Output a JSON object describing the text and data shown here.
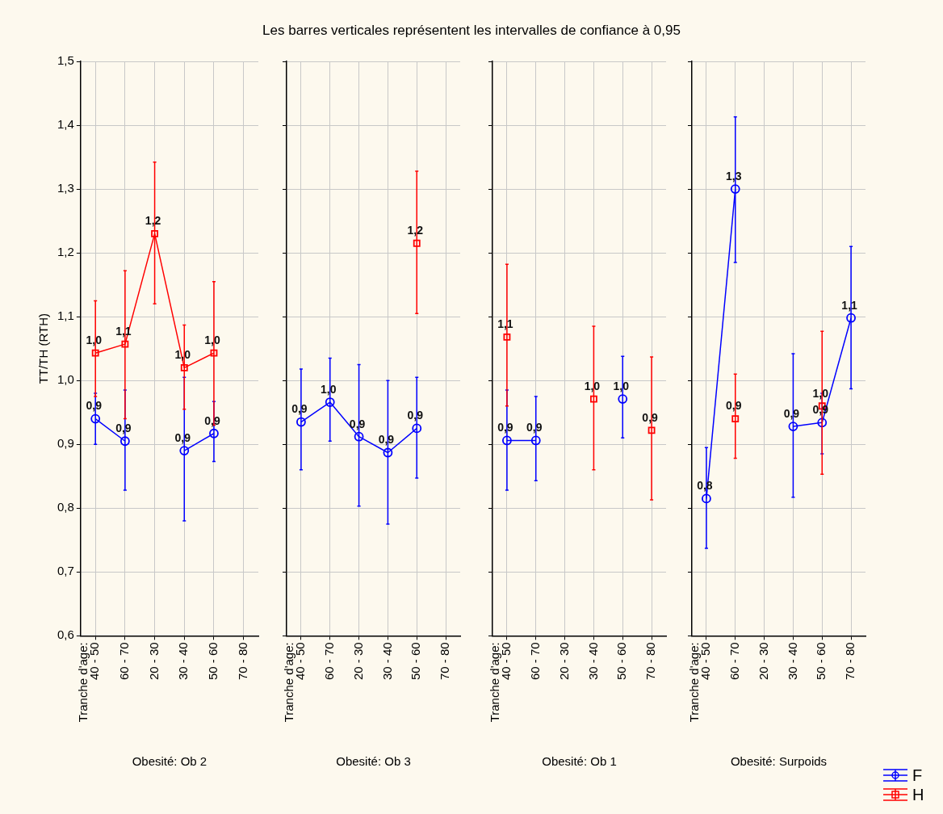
{
  "chart_data": [
    {
      "type": "line",
      "title": "Les barres verticales représentent les intervalles de confiance à 0,95",
      "ylabel": "TT/TH (RTH)",
      "xlabel": "Obesité: Ob 2",
      "annotations": [
        "Tranche d'age:"
      ],
      "categories": [
        "40 - 50",
        "60 - 70",
        "20 - 30",
        "30 - 40",
        "50 - 60",
        "70 - 80"
      ],
      "ylim": [
        0.6,
        1.5
      ],
      "yticks": [
        {
          "value": 0.6,
          "label": "0,6"
        },
        {
          "value": 0.7,
          "label": "0,7"
        },
        {
          "value": 0.8,
          "label": "0,8"
        },
        {
          "value": 0.9,
          "label": "0,9"
        },
        {
          "value": 1.0,
          "label": "1,0"
        },
        {
          "value": 1.1,
          "label": "1,1"
        },
        {
          "value": 1.2,
          "label": "1,2"
        },
        {
          "value": 1.3,
          "label": "1,3"
        },
        {
          "value": 1.4,
          "label": "1,4"
        },
        {
          "value": 1.5,
          "label": "1,5"
        }
      ],
      "grid": true,
      "line_style": "solid",
      "series": [
        {
          "color": "#0000ff",
          "marker": "circle",
          "values": [
            0.94,
            0.905,
            null,
            0.89,
            0.917,
            null
          ],
          "errors": [
            [
              0.9,
              0.98
            ],
            [
              0.828,
              0.985
            ],
            null,
            [
              0.78,
              1.005
            ],
            [
              0.873,
              0.967
            ],
            null
          ],
          "value_labels": [
            "0,9",
            "0,9",
            null,
            "0,9",
            "0,9",
            null
          ]
        },
        {
          "color": "#ff0000",
          "marker": "square",
          "values": [
            1.043,
            1.057,
            1.23,
            1.02,
            1.043,
            null
          ],
          "errors": [
            [
              0.975,
              1.125
            ],
            [
              0.94,
              1.172
            ],
            [
              1.12,
              1.342
            ],
            [
              0.955,
              1.087
            ],
            [
              0.93,
              1.155
            ],
            null
          ],
          "value_labels": [
            "1,0",
            "1,1",
            "1,2",
            "1,0",
            "1,0",
            null
          ]
        }
      ]
    },
    {
      "type": "line",
      "xlabel": "Obesité: Ob 3",
      "annotations": [
        "Tranche d'age:"
      ],
      "categories": [
        "40 - 50",
        "60 - 70",
        "20 - 30",
        "30 - 40",
        "50 - 60",
        "70 - 80"
      ],
      "ylim": [
        0.6,
        1.5
      ],
      "yticks": [
        {
          "value": 0.6,
          "label": null
        },
        {
          "value": 0.7,
          "label": null
        },
        {
          "value": 0.8,
          "label": null
        },
        {
          "value": 0.9,
          "label": null
        },
        {
          "value": 1.0,
          "label": null
        },
        {
          "value": 1.1,
          "label": null
        },
        {
          "value": 1.2,
          "label": null
        },
        {
          "value": 1.3,
          "label": null
        },
        {
          "value": 1.4,
          "label": null
        },
        {
          "value": 1.5,
          "label": null
        }
      ],
      "tick_labels": "x",
      "grid": true,
      "line_style": "solid",
      "series": [
        {
          "color": "#0000ff",
          "marker": "circle",
          "values": [
            0.935,
            0.966,
            0.912,
            0.887,
            0.925,
            null
          ],
          "errors": [
            [
              0.86,
              1.018
            ],
            [
              0.905,
              1.035
            ],
            [
              0.803,
              1.025
            ],
            [
              0.775,
              1.0
            ],
            [
              0.847,
              1.005
            ],
            null
          ],
          "value_labels": [
            "0,9",
            "1,0",
            "0,9",
            "0,9",
            "0,9",
            null
          ]
        },
        {
          "color": "#ff0000",
          "marker": "square",
          "values": [
            null,
            null,
            null,
            null,
            1.215,
            null
          ],
          "errors": [
            null,
            null,
            null,
            null,
            [
              1.105,
              1.328
            ],
            null
          ],
          "value_labels": [
            null,
            null,
            null,
            null,
            "1,2",
            null
          ]
        }
      ]
    },
    {
      "type": "line",
      "xlabel": "Obesité: Ob 1",
      "annotations": [
        "Tranche d'age:"
      ],
      "categories": [
        "40 - 50",
        "60 - 70",
        "20 - 30",
        "30 - 40",
        "50 - 60",
        "70 - 80"
      ],
      "ylim": [
        0.6,
        1.5
      ],
      "yticks": [
        {
          "value": 0.6,
          "label": null
        },
        {
          "value": 0.7,
          "label": null
        },
        {
          "value": 0.8,
          "label": null
        },
        {
          "value": 0.9,
          "label": null
        },
        {
          "value": 1.0,
          "label": null
        },
        {
          "value": 1.1,
          "label": null
        },
        {
          "value": 1.2,
          "label": null
        },
        {
          "value": 1.3,
          "label": null
        },
        {
          "value": 1.4,
          "label": null
        },
        {
          "value": 1.5,
          "label": null
        }
      ],
      "tick_labels": "x",
      "grid": true,
      "line_style": "solid",
      "series": [
        {
          "color": "#0000ff",
          "marker": "circle",
          "values": [
            0.906,
            0.906,
            null,
            null,
            0.971,
            null
          ],
          "errors": [
            [
              0.828,
              0.985
            ],
            [
              0.843,
              0.975
            ],
            null,
            null,
            [
              0.91,
              1.038
            ],
            null
          ],
          "value_labels": [
            "0,9",
            "0,9",
            null,
            null,
            "1,0",
            null
          ]
        },
        {
          "color": "#ff0000",
          "marker": "square",
          "values": [
            1.068,
            null,
            null,
            0.971,
            null,
            0.922
          ],
          "errors": [
            [
              0.96,
              1.182
            ],
            null,
            null,
            [
              0.86,
              1.085
            ],
            null,
            [
              0.813,
              1.037
            ]
          ],
          "value_labels": [
            "1,1",
            null,
            null,
            "1,0",
            null,
            "0,9"
          ]
        }
      ]
    },
    {
      "type": "line",
      "xlabel": "Obesité: Surpoids",
      "annotations": [
        "Tranche d'age:"
      ],
      "categories": [
        "40 - 50",
        "60 - 70",
        "20 - 30",
        "30 - 40",
        "50 - 60",
        "70 - 80"
      ],
      "ylim": [
        0.6,
        1.5
      ],
      "yticks": [
        {
          "value": 0.6,
          "label": null
        },
        {
          "value": 0.7,
          "label": null
        },
        {
          "value": 0.8,
          "label": null
        },
        {
          "value": 0.9,
          "label": null
        },
        {
          "value": 1.0,
          "label": null
        },
        {
          "value": 1.1,
          "label": null
        },
        {
          "value": 1.2,
          "label": null
        },
        {
          "value": 1.3,
          "label": null
        },
        {
          "value": 1.4,
          "label": null
        },
        {
          "value": 1.5,
          "label": null
        }
      ],
      "tick_labels": "x",
      "grid": true,
      "legend": "bottom right",
      "line_style": "solid",
      "series": [
        {
          "name": "F",
          "color": "#0000ff",
          "marker": "circle",
          "values": [
            0.815,
            1.3,
            null,
            0.928,
            0.934,
            1.098
          ],
          "errors": [
            [
              0.737,
              0.895
            ],
            [
              1.185,
              1.413
            ],
            null,
            [
              0.817,
              1.042
            ],
            [
              0.885,
              0.98
            ],
            [
              0.987,
              1.21
            ]
          ],
          "value_labels": [
            "0,8",
            "1,3",
            null,
            "0,9",
            "0,9",
            "1,1"
          ]
        },
        {
          "name": "H",
          "color": "#ff0000",
          "marker": "square",
          "values": [
            null,
            0.94,
            null,
            null,
            0.96,
            null
          ],
          "errors": [
            null,
            [
              0.878,
              1.01
            ],
            null,
            null,
            [
              0.853,
              1.077
            ],
            null
          ],
          "value_labels": [
            null,
            "0,9",
            null,
            null,
            "1,0",
            null
          ]
        }
      ]
    }
  ]
}
